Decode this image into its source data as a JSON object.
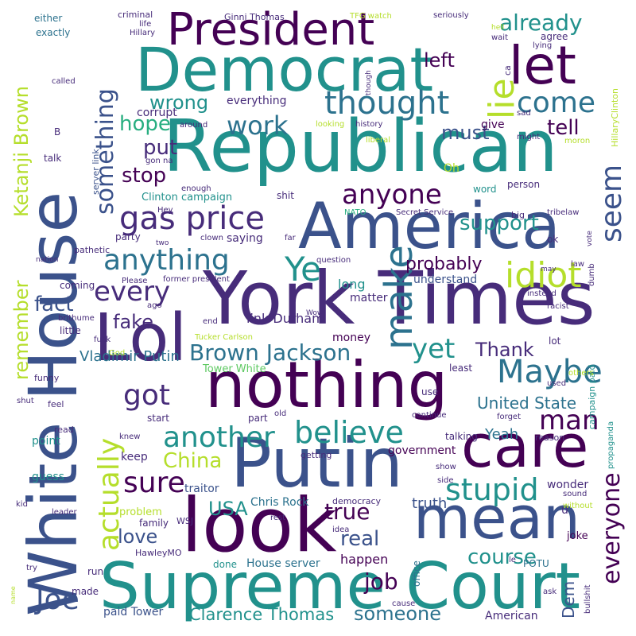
{
  "palette": {
    "background": "#ffffff",
    "dark_purple": "#440154",
    "indigo": "#472c7a",
    "blue": "#3b528b",
    "steel_blue": "#2c728e",
    "teal": "#21918c",
    "green": "#28ae80",
    "lime": "#5ec962",
    "yellow": "#b5de2b"
  },
  "words": {
    "white_house": "White House",
    "democrat": "Democrat",
    "republican": "Republican",
    "america": "America",
    "york_times": "York Times",
    "nothing": "nothing",
    "lol": "Lol",
    "putin": "Putin",
    "look": "look",
    "supreme_court": "Supreme Court",
    "care": "care",
    "mean": "mean",
    "president": "President",
    "let": "let",
    "lie": "lie",
    "thought": "thought",
    "come": "come",
    "gas_price": "gas price",
    "anyone": "anyone",
    "seem": "seem",
    "idiot": "idiot",
    "maybe": "Maybe",
    "make": "make",
    "anything": "anything",
    "every": "every",
    "ye": "Ye",
    "another": "another",
    "believe": "believe",
    "stupid": "stupid",
    "got": "got",
    "sure": "sure",
    "actually": "actually",
    "something": "something",
    "joe": "Joe",
    "man": "man",
    "work": "work",
    "wrong": "wrong",
    "already": "already",
    "support": "support",
    "yet": "yet",
    "brown_jackson": "Brown Jackson",
    "everyone": "everyone",
    "someone": "someone",
    "clarence_thomas": "Clarence Thomas",
    "ketanji_brown": "Ketanji Brown",
    "remember": "remember",
    "china": "China",
    "left": "left",
    "tell": "tell",
    "must": "must",
    "stop": "stop",
    "put": "put",
    "hope": "hope",
    "fact": "fact",
    "fake": "fake",
    "probably": "probably",
    "true": "true",
    "real": "real",
    "course": "course",
    "job": "job",
    "love": "love",
    "usa": "USA",
    "thank": "Thank",
    "united_state": "United State",
    "yeah": "Yeah",
    "vladimir_putin": "Vladimir Putin",
    "dem": "Dem",
    "link_durham": "link Durham",
    "everything": "everything",
    "corrupt": "corrupt",
    "give": "give",
    "understand": "understand",
    "long": "long",
    "matter": "matter",
    "happen": "happen",
    "truth": "truth",
    "government": "government",
    "chris_rock": "Chris Rock",
    "house_server": "House server",
    "tower_white": "Tower White",
    "paid_tower": "paid Tower",
    "american": "American",
    "potu": "POTU",
    "joke": "joke",
    "office": "office",
    "u": "u",
    "wonder": "wonder",
    "guess": "guess",
    "point": "point",
    "keep": "keep",
    "problem": "problem",
    "traitor": "traitor",
    "family": "family",
    "made": "made",
    "done": "done",
    "run": "run",
    "either": "either",
    "exactly": "exactly",
    "criminal": "criminal",
    "life": "life",
    "hillary": "Hillary",
    "ginni_thomas": "Ginni Thomas",
    "tfg_watch": "TFG watch",
    "seriously": "seriously",
    "agree": "agree",
    "wait": "wait",
    "lying": "lying",
    "hell": "hell",
    "ca": "ca",
    "hillaryclinton": "HillaryClinton",
    "campaign_paid": "campaign paid",
    "called": "called",
    "b": "B",
    "talk": "talk",
    "server_link": "server link",
    "gon_na": "gon na",
    "around": "around",
    "looking": "looking",
    "history": "history",
    "liberal": "liberal",
    "sad": "sad",
    "might": "might",
    "moron": "moron",
    "though": "though",
    "oh": "Oh",
    "clinton_campaign": "Clinton campaign",
    "enough": "enough",
    "hey": "Hey",
    "word": "word",
    "person": "person",
    "secret_service": "Secret Service",
    "nato": "NATO",
    "big": "big",
    "tribelaw": "tribelaw",
    "party": "party",
    "saying": "saying",
    "clown": "clown",
    "far": "far",
    "two": "two",
    "pathetic": "pathetic",
    "nation": "nation",
    "shit": "shit",
    "question": "question",
    "please": "Please",
    "coming": "coming",
    "former_president": "former president",
    "ok": "ok",
    "may": "may",
    "vote": "vote",
    "dumb": "dumb",
    "law": "law",
    "instead": "instead",
    "racist": "racist",
    "ago": "ago",
    "brithume": "brithume",
    "little": "little",
    "fuck": "fuck",
    "end": "end",
    "wow": "Wow",
    "money": "money",
    "lot": "lot",
    "god": "God",
    "tucker_carlson": "Tucker Carlson",
    "least": "least",
    "use": "use",
    "used": "used",
    "others": "others",
    "funny": "funny",
    "feel": "feel",
    "shut": "shut",
    "start": "start",
    "part": "part",
    "old": "old",
    "continue": "continue",
    "forget": "forget",
    "read": "read",
    "knew": "knew",
    "talking": "talking",
    "reason": "reason",
    "propaganda": "propaganda",
    "getting": "getting",
    "show": "show",
    "side": "side",
    "sound": "sound",
    "without": "without",
    "kid": "kid",
    "leader": "leader",
    "democracy": "democracy",
    "wsj": "WSJ",
    "rest": "rest",
    "idea": "idea",
    "hawleymo": "HawleyMO",
    "le": "le",
    "ask": "ask",
    "bullshit": "bullshit",
    "cause": "cause",
    "try": "try",
    "name": "name"
  }
}
